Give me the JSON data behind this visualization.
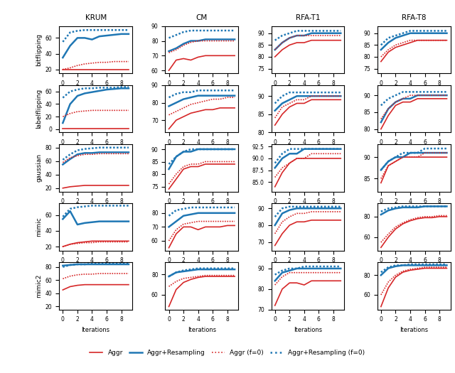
{
  "col_titles": [
    "KRUM",
    "CM",
    "RFA-T1",
    "RFA-T8"
  ],
  "row_titles": [
    "bitflipping",
    "labelflipping",
    "gaussian",
    "mimic",
    "mimic2"
  ],
  "x": [
    0,
    1,
    2,
    3,
    4,
    5,
    6,
    7,
    8,
    9
  ],
  "series": {
    "bitflipping": {
      "KRUM": {
        "aggr": [
          20,
          20,
          20,
          20,
          20,
          20,
          20,
          20,
          20,
          20
        ],
        "aggr_res": [
          35,
          50,
          60,
          60,
          58,
          62,
          63,
          64,
          65,
          65
        ],
        "aggr_f0": [
          20,
          22,
          25,
          27,
          28,
          29,
          29,
          30,
          30,
          30
        ],
        "aggr_res_f0": [
          55,
          67,
          69,
          70,
          70,
          70,
          70,
          70,
          70,
          70
        ]
      },
      "CM": {
        "aggr": [
          60,
          67,
          68,
          67,
          69,
          70,
          70,
          70,
          70,
          70
        ],
        "aggr_res": [
          73,
          75,
          78,
          80,
          80,
          81,
          81,
          81,
          81,
          81
        ],
        "aggr_f0": [
          72,
          74,
          77,
          79,
          80,
          80,
          80,
          80,
          80,
          80
        ],
        "aggr_res_f0": [
          82,
          84,
          86,
          87,
          87,
          87,
          87,
          87,
          87,
          87
        ]
      },
      "RFA-T1": {
        "aggr": [
          80,
          83,
          85,
          86,
          86,
          87,
          87,
          87,
          87,
          87
        ],
        "aggr_res": [
          83,
          86,
          88,
          89,
          89,
          90,
          90,
          90,
          90,
          90
        ],
        "aggr_f0": [
          83,
          86,
          88,
          89,
          89,
          89,
          89,
          89,
          89,
          89
        ],
        "aggr_res_f0": [
          87,
          89,
          90,
          91,
          91,
          91,
          91,
          91,
          91,
          91
        ]
      },
      "RFA-T8": {
        "aggr": [
          78,
          82,
          84,
          85,
          86,
          87,
          87,
          87,
          87,
          87
        ],
        "aggr_res": [
          83,
          86,
          88,
          89,
          90,
          90,
          90,
          90,
          90,
          90
        ],
        "aggr_f0": [
          80,
          83,
          85,
          86,
          87,
          87,
          87,
          87,
          87,
          87
        ],
        "aggr_res_f0": [
          85,
          88,
          89,
          90,
          91,
          91,
          91,
          91,
          91,
          91
        ]
      }
    },
    "labelflipping": {
      "KRUM": {
        "aggr": [
          1,
          1,
          1,
          1,
          1,
          1,
          1,
          1,
          1,
          1
        ],
        "aggr_res": [
          10,
          40,
          53,
          57,
          59,
          61,
          63,
          64,
          65,
          65
        ],
        "aggr_f0": [
          20,
          25,
          28,
          29,
          30,
          30,
          30,
          30,
          30,
          30
        ],
        "aggr_res_f0": [
          50,
          60,
          63,
          65,
          65,
          66,
          66,
          66,
          67,
          67
        ]
      },
      "CM": {
        "aggr": [
          65,
          70,
          72,
          74,
          75,
          76,
          76,
          77,
          77,
          77
        ],
        "aggr_res": [
          78,
          80,
          82,
          83,
          84,
          84,
          84,
          84,
          84,
          84
        ],
        "aggr_f0": [
          73,
          75,
          77,
          79,
          80,
          81,
          82,
          82,
          83,
          83
        ],
        "aggr_res_f0": [
          83,
          85,
          86,
          86,
          87,
          87,
          87,
          87,
          87,
          87
        ]
      },
      "RFA-T1": {
        "aggr": [
          82,
          85,
          87,
          88,
          88,
          89,
          89,
          89,
          89,
          89
        ],
        "aggr_res": [
          86,
          88,
          89,
          90,
          90,
          90,
          90,
          90,
          90,
          90
        ],
        "aggr_f0": [
          84,
          87,
          88,
          89,
          89,
          90,
          90,
          90,
          90,
          90
        ],
        "aggr_res_f0": [
          88,
          90,
          91,
          91,
          91,
          91,
          91,
          91,
          91,
          91
        ]
      },
      "RFA-T8": {
        "aggr": [
          80,
          84,
          87,
          88,
          88,
          89,
          89,
          89,
          89,
          89
        ],
        "aggr_res": [
          82,
          86,
          88,
          89,
          89,
          90,
          90,
          90,
          90,
          90
        ],
        "aggr_f0": [
          83,
          86,
          88,
          89,
          90,
          90,
          90,
          90,
          90,
          90
        ],
        "aggr_res_f0": [
          87,
          89,
          90,
          91,
          91,
          91,
          91,
          91,
          91,
          91
        ]
      }
    },
    "gaussian": {
      "KRUM": {
        "aggr": [
          20,
          22,
          23,
          24,
          24,
          24,
          24,
          24,
          24,
          24
        ],
        "aggr_res": [
          55,
          63,
          70,
          72,
          72,
          73,
          73,
          73,
          73,
          73
        ],
        "aggr_f0": [
          58,
          65,
          68,
          70,
          70,
          71,
          71,
          71,
          71,
          71
        ],
        "aggr_res_f0": [
          62,
          70,
          76,
          78,
          79,
          80,
          80,
          80,
          80,
          80
        ]
      },
      "CM": {
        "aggr": [
          74,
          78,
          82,
          83,
          83,
          84,
          84,
          84,
          84,
          84
        ],
        "aggr_res": [
          82,
          87,
          89,
          89,
          90,
          90,
          90,
          90,
          90,
          90
        ],
        "aggr_f0": [
          76,
          80,
          83,
          84,
          84,
          85,
          85,
          85,
          85,
          85
        ],
        "aggr_res_f0": [
          84,
          87,
          89,
          90,
          90,
          90,
          90,
          90,
          90,
          90
        ]
      },
      "RFA-T1": {
        "aggr": [
          84,
          87,
          89,
          90,
          90,
          90,
          90,
          90,
          90,
          90
        ],
        "aggr_res": [
          88,
          90,
          91,
          91,
          92,
          92,
          92,
          92,
          92,
          92
        ],
        "aggr_f0": [
          86,
          88,
          89,
          90,
          90,
          91,
          91,
          91,
          91,
          91
        ],
        "aggr_res_f0": [
          89,
          91,
          92,
          92,
          92,
          92,
          92,
          92,
          92,
          92
        ]
      },
      "RFA-T8": {
        "aggr": [
          84,
          88,
          89,
          90,
          90,
          90,
          90,
          90,
          90,
          90
        ],
        "aggr_res": [
          87,
          89,
          90,
          90,
          91,
          91,
          91,
          91,
          91,
          91
        ],
        "aggr_f0": [
          85,
          88,
          89,
          90,
          90,
          90,
          91,
          91,
          91,
          91
        ],
        "aggr_res_f0": [
          87,
          89,
          90,
          91,
          91,
          91,
          92,
          92,
          92,
          92
        ]
      }
    },
    "mimic": {
      "KRUM": {
        "aggr": [
          20,
          23,
          25,
          26,
          27,
          27,
          27,
          27,
          27,
          27
        ],
        "aggr_res": [
          55,
          65,
          48,
          50,
          51,
          52,
          52,
          52,
          52,
          52
        ],
        "aggr_f0": [
          20,
          23,
          24,
          25,
          25,
          26,
          26,
          26,
          26,
          26
        ],
        "aggr_res_f0": [
          58,
          68,
          70,
          71,
          72,
          72,
          72,
          72,
          72,
          72
        ]
      },
      "CM": {
        "aggr": [
          55,
          65,
          70,
          70,
          68,
          70,
          70,
          70,
          71,
          71
        ],
        "aggr_res": [
          70,
          74,
          78,
          79,
          80,
          80,
          80,
          80,
          80,
          80
        ],
        "aggr_f0": [
          60,
          68,
          72,
          73,
          74,
          74,
          74,
          74,
          74,
          74
        ],
        "aggr_res_f0": [
          78,
          82,
          83,
          84,
          84,
          84,
          84,
          84,
          84,
          84
        ]
      },
      "RFA-T1": {
        "aggr": [
          68,
          75,
          80,
          82,
          82,
          83,
          83,
          83,
          83,
          83
        ],
        "aggr_res": [
          80,
          87,
          89,
          90,
          90,
          90,
          90,
          90,
          90,
          90
        ],
        "aggr_f0": [
          75,
          82,
          85,
          87,
          87,
          88,
          88,
          88,
          88,
          88
        ],
        "aggr_res_f0": [
          85,
          90,
          91,
          91,
          91,
          91,
          91,
          91,
          91,
          91
        ]
      },
      "RFA-T8": {
        "aggr": [
          50,
          60,
          68,
          73,
          76,
          78,
          79,
          79,
          80,
          80
        ],
        "aggr_res": [
          82,
          86,
          88,
          89,
          89,
          89,
          90,
          90,
          90,
          90
        ],
        "aggr_f0": [
          55,
          63,
          70,
          74,
          77,
          79,
          80,
          80,
          81,
          81
        ],
        "aggr_res_f0": [
          85,
          88,
          89,
          90,
          90,
          90,
          90,
          90,
          90,
          90
        ]
      }
    },
    "mimic2": {
      "KRUM": {
        "aggr": [
          45,
          50,
          52,
          53,
          53,
          53,
          53,
          53,
          53,
          53
        ],
        "aggr_res": [
          82,
          83,
          84,
          84,
          84,
          84,
          84,
          84,
          84,
          84
        ],
        "aggr_f0": [
          62,
          66,
          68,
          69,
          69,
          70,
          70,
          70,
          70,
          70
        ],
        "aggr_res_f0": [
          80,
          83,
          84,
          84,
          85,
          85,
          85,
          85,
          85,
          85
        ]
      },
      "CM": {
        "aggr": [
          48,
          65,
          72,
          75,
          77,
          78,
          78,
          78,
          78,
          78
        ],
        "aggr_res": [
          78,
          82,
          83,
          84,
          85,
          85,
          85,
          85,
          85,
          85
        ],
        "aggr_f0": [
          68,
          73,
          76,
          77,
          78,
          79,
          79,
          79,
          79,
          79
        ],
        "aggr_res_f0": [
          78,
          82,
          84,
          85,
          86,
          86,
          86,
          86,
          86,
          86
        ]
      },
      "RFA-T1": {
        "aggr": [
          72,
          80,
          83,
          83,
          82,
          84,
          84,
          84,
          84,
          84
        ],
        "aggr_res": [
          84,
          88,
          89,
          90,
          90,
          90,
          90,
          90,
          90,
          90
        ],
        "aggr_f0": [
          82,
          86,
          88,
          88,
          88,
          88,
          88,
          88,
          88,
          88
        ],
        "aggr_res_f0": [
          87,
          89,
          90,
          90,
          91,
          91,
          91,
          91,
          91,
          91
        ]
      },
      "RFA-T8": {
        "aggr": [
          48,
          67,
          78,
          83,
          85,
          86,
          87,
          87,
          87,
          87
        ],
        "aggr_res": [
          80,
          87,
          89,
          90,
          90,
          90,
          90,
          90,
          90,
          90
        ],
        "aggr_f0": [
          60,
          73,
          80,
          84,
          86,
          87,
          88,
          88,
          88,
          88
        ],
        "aggr_res_f0": [
          83,
          88,
          90,
          90,
          91,
          91,
          91,
          91,
          91,
          91
        ]
      }
    }
  },
  "ylims": {
    "bitflipping": {
      "KRUM": [
        15,
        75
      ],
      "CM": [
        58,
        90
      ],
      "RFA-T1": [
        73,
        93
      ],
      "RFA-T8": [
        73,
        93
      ]
    },
    "labelflipping": {
      "KRUM": [
        -5,
        70
      ],
      "CM": [
        63,
        90
      ],
      "RFA-T1": [
        80,
        93
      ],
      "RFA-T8": [
        79,
        93
      ]
    },
    "gaussian": {
      "KRUM": [
        15,
        85
      ],
      "CM": [
        73,
        92
      ],
      "RFA-T1": [
        83,
        93
      ],
      "RFA-T8": [
        82,
        93
      ]
    },
    "mimic": {
      "KRUM": [
        15,
        75
      ],
      "CM": [
        53,
        87
      ],
      "RFA-T1": [
        65,
        93
      ],
      "RFA-T8": [
        47,
        93
      ]
    },
    "mimic2": {
      "KRUM": [
        15,
        87
      ],
      "CM": [
        45,
        92
      ],
      "RFA-T1": [
        70,
        93
      ],
      "RFA-T8": [
        45,
        93
      ]
    }
  },
  "colors": {
    "aggr": "#d62728",
    "aggr_res": "#1f77b4",
    "aggr_f0": "#d62728",
    "aggr_res_f0": "#1f77b4"
  },
  "legend_labels": [
    "Aggr",
    "Aggr+Resampling",
    "Aggr (f=0)",
    "Aggr+Resampling (f=0)"
  ]
}
